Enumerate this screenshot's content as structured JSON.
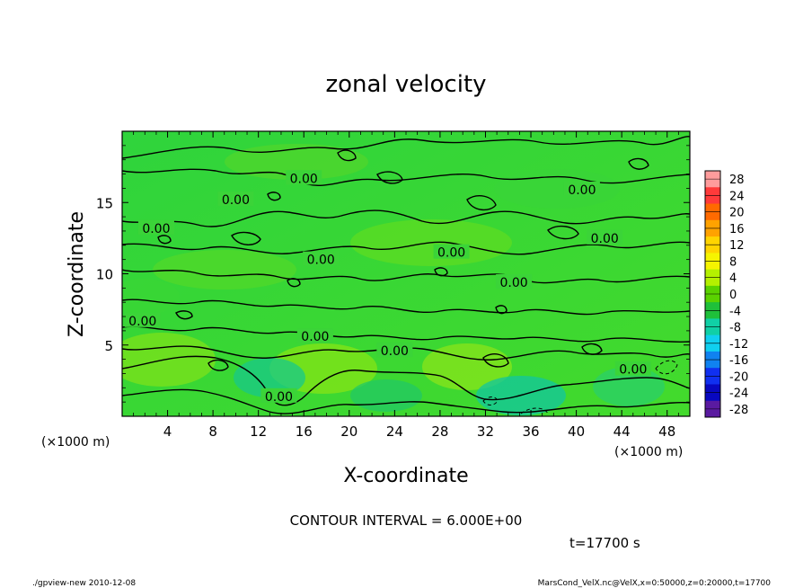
{
  "chart_data": {
    "type": "heatmap",
    "title": "zonal velocity",
    "xlabel": "X-coordinate",
    "ylabel": "Z-coordinate",
    "x_unit": "(×1000 m)",
    "x_unit_right": "(×1000 m)",
    "xlim": [
      0,
      50
    ],
    "ylim": [
      0,
      20
    ],
    "x_ticks": [
      4,
      8,
      12,
      16,
      20,
      24,
      28,
      32,
      36,
      40,
      44,
      48
    ],
    "y_ticks": [
      5,
      10,
      15
    ],
    "colorbar": {
      "levels": [
        28,
        24,
        20,
        16,
        12,
        8,
        4,
        0,
        -4,
        -8,
        -12,
        -16,
        -20,
        -24,
        -28
      ],
      "colors": [
        "#ff9c9c",
        "#ff3a3a",
        "#ff6a00",
        "#ffa200",
        "#ffd400",
        "#f6f400",
        "#b4f000",
        "#5ad200",
        "#1fc03a",
        "#10d0a6",
        "#10d0f0",
        "#1082f0",
        "#1030f0",
        "#0808c0",
        "#5a1aa0"
      ]
    },
    "contour_interval_text": "CONTOUR INTERVAL = 6.000E+00",
    "contour_label": "0.00",
    "contour_label_positions": [
      [
        16.0,
        16.7
      ],
      [
        10.0,
        15.2
      ],
      [
        3.0,
        13.2
      ],
      [
        40.5,
        15.9
      ],
      [
        42.5,
        12.5
      ],
      [
        29.0,
        11.5
      ],
      [
        17.5,
        11.0
      ],
      [
        34.5,
        9.4
      ],
      [
        1.8,
        6.7
      ],
      [
        17.0,
        5.6
      ],
      [
        24.0,
        4.6
      ],
      [
        45.0,
        3.3
      ],
      [
        13.8,
        1.4
      ]
    ],
    "time_text": "t=17700 s",
    "footer_left": "./gpview-new  2010-12-08",
    "footer_right": "MarsCond_VelX.nc@VelX,x=0:50000,z=0:20000,t=17700"
  }
}
